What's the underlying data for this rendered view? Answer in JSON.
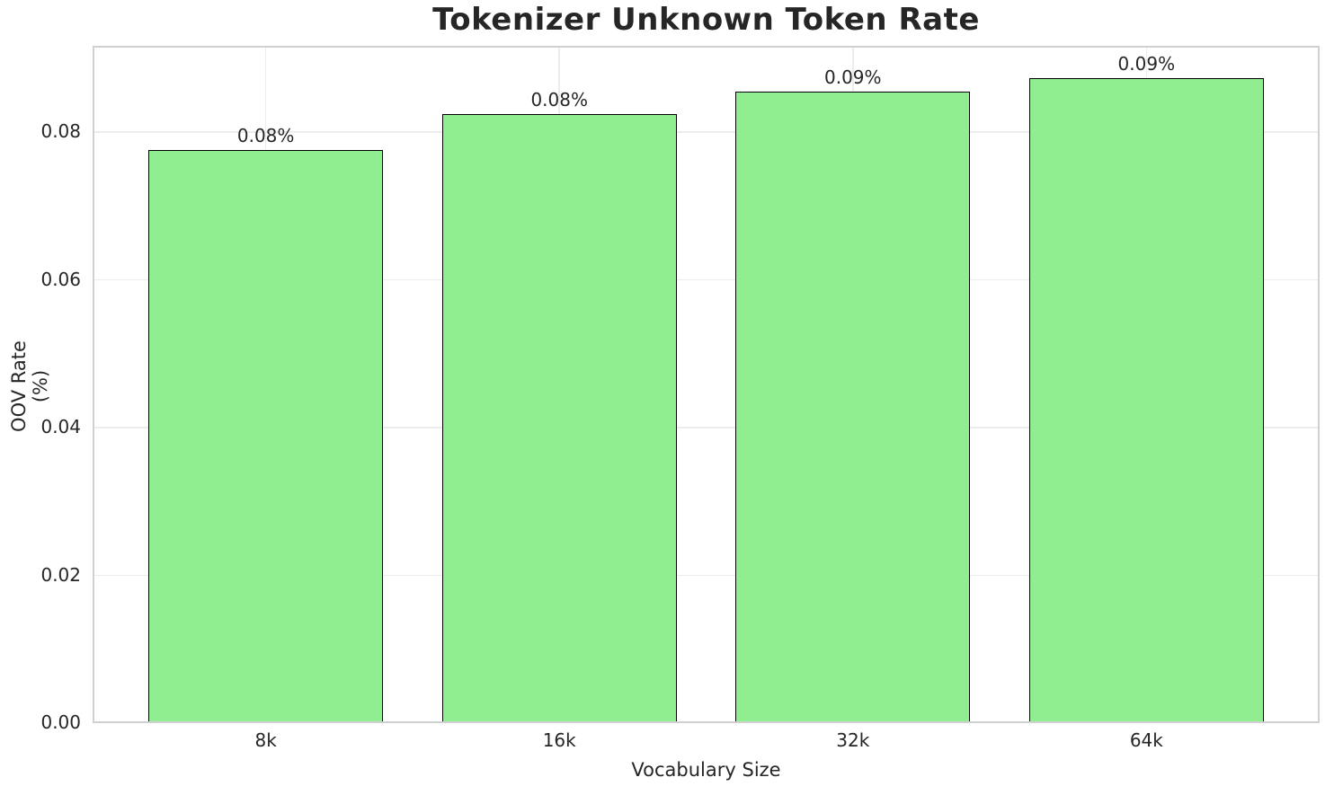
{
  "chart_data": {
    "type": "bar",
    "title": "Tokenizer Unknown Token Rate",
    "xlabel": "Vocabulary Size",
    "ylabel": "OOV Rate (%)",
    "categories": [
      "8k",
      "16k",
      "32k",
      "64k"
    ],
    "values": [
      0.0776,
      0.0824,
      0.0855,
      0.0873
    ],
    "bar_labels": [
      "0.08%",
      "0.08%",
      "0.09%",
      "0.09%"
    ],
    "ylim": [
      0,
      0.0917
    ],
    "ytick_values": [
      0.0,
      0.02,
      0.04,
      0.06,
      0.08
    ],
    "ytick_labels": [
      "0.00",
      "0.02",
      "0.04",
      "0.06",
      "0.08"
    ],
    "grid": true,
    "legend_position": "none",
    "bar_color": "#90ee90",
    "bar_edge_color": "#000000",
    "text_color": "#262626",
    "grid_color": "#ececec",
    "spine_color": "#d0d0d0",
    "background_color": "#ffffff"
  }
}
